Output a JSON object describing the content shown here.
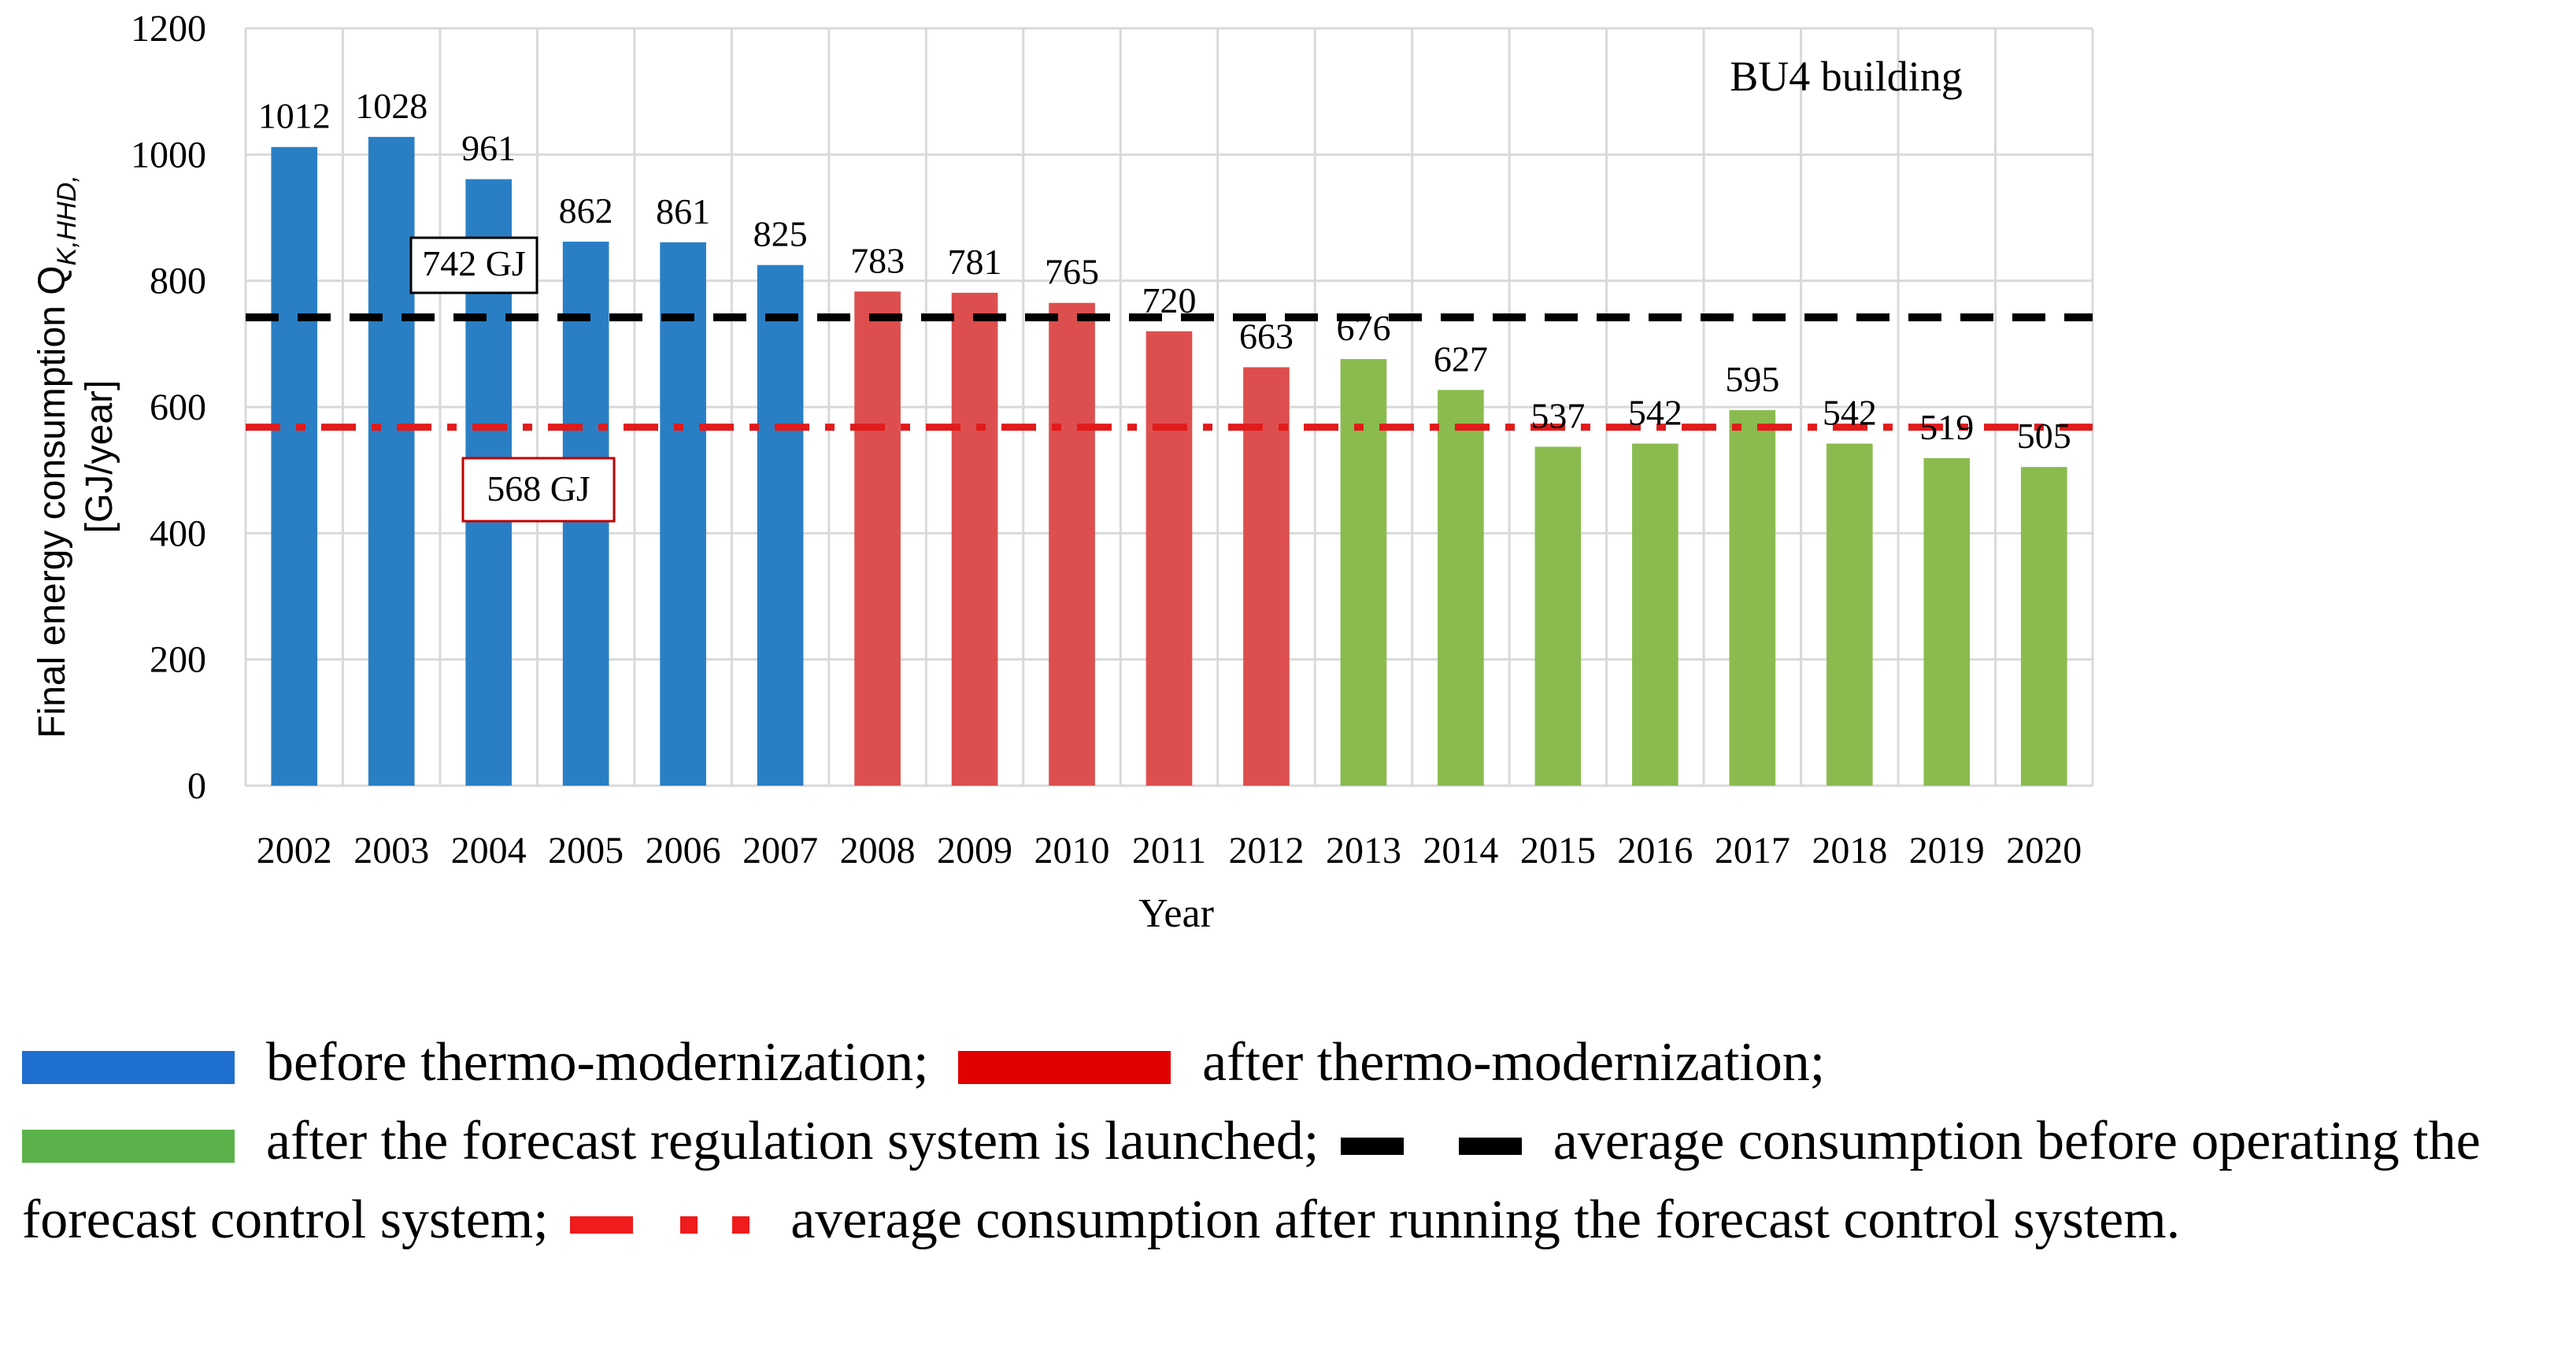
{
  "chart_data": {
    "type": "bar",
    "title": "BU4 building",
    "xlabel": "Year",
    "ylabel_line1": "Final energy consumption Q",
    "ylabel_sub": "K,HHD,",
    "ylabel_line2": "[GJ/year]",
    "ylim": [
      0,
      1200
    ],
    "yticks": [
      0,
      200,
      400,
      600,
      800,
      1000,
      1200
    ],
    "grid": true,
    "categories": [
      "2002",
      "2003",
      "2004",
      "2005",
      "2006",
      "2007",
      "2008",
      "2009",
      "2010",
      "2011",
      "2012",
      "2013",
      "2014",
      "2015",
      "2016",
      "2017",
      "2018",
      "2019",
      "2020"
    ],
    "values": [
      1012,
      1028,
      961,
      862,
      861,
      825,
      783,
      781,
      765,
      720,
      663,
      676,
      627,
      537,
      542,
      595,
      542,
      519,
      505
    ],
    "groups": [
      "before",
      "before",
      "before",
      "before",
      "before",
      "before",
      "after",
      "after",
      "after",
      "after",
      "after",
      "forecast",
      "forecast",
      "forecast",
      "forecast",
      "forecast",
      "forecast",
      "forecast",
      "forecast"
    ],
    "colors": {
      "before": "#2a7fc4",
      "after": "#dd4f4f",
      "forecast": "#8bbb4f",
      "avg_before_line": "#000000",
      "avg_after_line": "#e21a1a"
    },
    "reference_lines": [
      {
        "name": "avg_before",
        "value": 742,
        "label": "742 GJ",
        "style": "dashed"
      },
      {
        "name": "avg_after",
        "value": 568,
        "label": "568 GJ",
        "style": "dash-dot"
      }
    ]
  },
  "legend": {
    "before_label": "before thermo-modernization;",
    "after_label": "after thermo-modernization;",
    "forecast_label": "after the forecast regulation system is launched;",
    "avg_before_label": "average consumption before operating the forecast control system;",
    "avg_after_label": "average consumption after running the forecast control system.",
    "colors": {
      "before": "#1f6fcf",
      "after": "#e00000",
      "forecast": "#5cb24a",
      "avg_before": "#000000",
      "avg_after": "#ee1c1c"
    }
  }
}
